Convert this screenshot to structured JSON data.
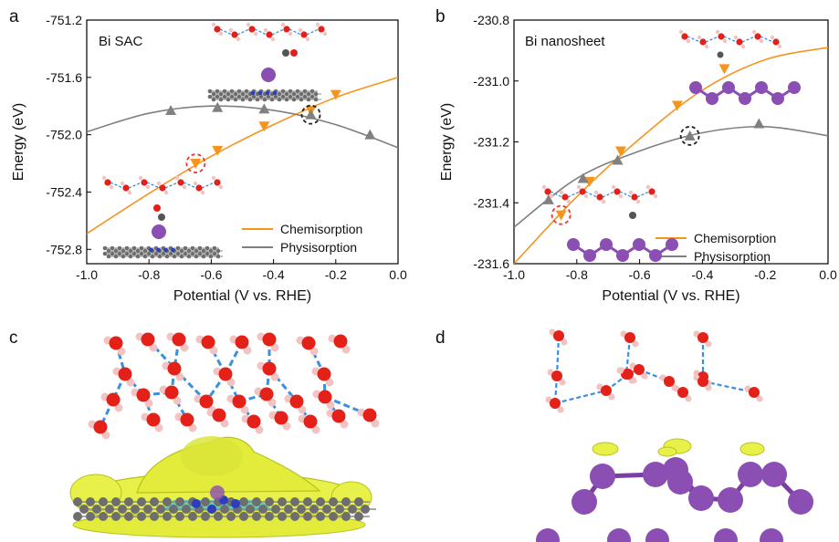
{
  "panel_labels": [
    "a",
    "b",
    "c",
    "d"
  ],
  "colors": {
    "chemisorption": "#f7941d",
    "physisorption": "#808080",
    "highlight_red": "#e53935",
    "highlight_black": "#222222",
    "oxygen": "#e32119",
    "hydrogen": "#f2c3c3",
    "hbond": "#3a8fe0",
    "carbon": "#6e6e6e",
    "nitrogen": "#2c3dbd",
    "bismuth": "#8b4fb3",
    "isosurface": "#e8f04a",
    "isosurface_edge": "#b9c21b"
  },
  "chart_data": [
    {
      "type": "line",
      "panel": "a",
      "annotation": "Bi SAC",
      "xlabel": "Potential (V vs. RHE)",
      "ylabel": "Energy (eV)",
      "xlim": [
        -1.0,
        0.0
      ],
      "ylim": [
        -752.9,
        -751.2
      ],
      "xticks": [
        "-1.0",
        "-0.8",
        "-0.6",
        "-0.4",
        "-0.2",
        "0.0"
      ],
      "yticks": [
        "-751.2",
        "-751.6",
        "-752.0",
        "-752.4",
        "-752.8"
      ],
      "legend_position": "bottom-right",
      "series": [
        {
          "name": "Chemisorption",
          "marker": "triangle-down",
          "points": [
            [
              -0.65,
              -752.2
            ],
            [
              -0.58,
              -752.11
            ],
            [
              -0.43,
              -751.94
            ],
            [
              -0.28,
              -751.83
            ],
            [
              -0.2,
              -751.72
            ]
          ],
          "curve": [
            [
              -1.0,
              -752.69
            ],
            [
              -0.8,
              -752.41
            ],
            [
              -0.6,
              -752.15
            ],
            [
              -0.4,
              -751.93
            ],
            [
              -0.2,
              -751.74
            ],
            [
              0.0,
              -751.6
            ]
          ]
        },
        {
          "name": "Physisorption",
          "marker": "triangle-up",
          "points": [
            [
              -0.73,
              -751.83
            ],
            [
              -0.58,
              -751.81
            ],
            [
              -0.43,
              -751.82
            ],
            [
              -0.28,
              -751.86
            ],
            [
              -0.09,
              -752.0
            ]
          ],
          "curve": [
            [
              -1.0,
              -751.98
            ],
            [
              -0.8,
              -751.85
            ],
            [
              -0.6,
              -751.8
            ],
            [
              -0.4,
              -751.83
            ],
            [
              -0.2,
              -751.93
            ],
            [
              0.0,
              -752.09
            ]
          ]
        }
      ],
      "highlighted": [
        {
          "series": "Chemisorption",
          "x": -0.65,
          "y": -752.2,
          "color": "red"
        },
        {
          "series": "Physisorption",
          "x": -0.28,
          "y": -751.86,
          "color": "black"
        }
      ]
    },
    {
      "type": "line",
      "panel": "b",
      "annotation": "Bi nanosheet",
      "xlabel": "Potential (V vs. RHE)",
      "ylabel": "Energy (eV)",
      "xlim": [
        -1.0,
        0.0
      ],
      "ylim": [
        -231.6,
        -230.8
      ],
      "xticks": [
        "-1.0",
        "-0.8",
        "-0.6",
        "-0.4",
        "-0.2",
        "0.0"
      ],
      "yticks": [
        "-230.8",
        "-231.0",
        "-231.2",
        "-231.4",
        "-231.6"
      ],
      "legend_position": "bottom-right",
      "series": [
        {
          "name": "Chemisorption",
          "marker": "triangle-down",
          "points": [
            [
              -0.85,
              -231.44
            ],
            [
              -0.76,
              -231.33
            ],
            [
              -0.66,
              -231.23
            ],
            [
              -0.48,
              -231.08
            ],
            [
              -0.33,
              -230.96
            ]
          ],
          "curve": [
            [
              -1.0,
              -231.6
            ],
            [
              -0.8,
              -231.38
            ],
            [
              -0.6,
              -231.19
            ],
            [
              -0.4,
              -231.03
            ],
            [
              -0.2,
              -230.93
            ],
            [
              0.0,
              -230.89
            ]
          ]
        },
        {
          "name": "Physisorption",
          "marker": "triangle-up",
          "points": [
            [
              -0.89,
              -231.39
            ],
            [
              -0.78,
              -231.32
            ],
            [
              -0.67,
              -231.26
            ],
            [
              -0.44,
              -231.18
            ],
            [
              -0.22,
              -231.14
            ]
          ],
          "curve": [
            [
              -1.0,
              -231.48
            ],
            [
              -0.8,
              -231.32
            ],
            [
              -0.6,
              -231.23
            ],
            [
              -0.4,
              -231.17
            ],
            [
              -0.2,
              -231.15
            ],
            [
              0.0,
              -231.18
            ]
          ]
        }
      ],
      "highlighted": [
        {
          "series": "Chemisorption",
          "x": -0.85,
          "y": -231.44,
          "color": "red"
        },
        {
          "series": "Physisorption",
          "x": -0.44,
          "y": -231.18,
          "color": "black"
        }
      ]
    }
  ]
}
